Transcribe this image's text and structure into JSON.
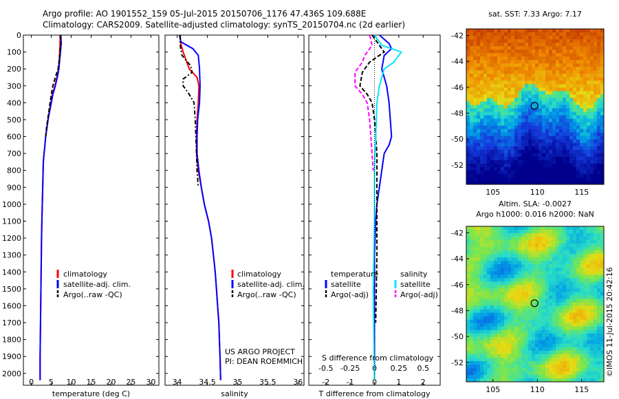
{
  "header": {
    "line1": "Argo profile: AO 1901552_159 05-Jul-2015 20150706_1176 47.436S 109.688E",
    "line2": "Climatology: CARS2009. Satellite-adjusted climatology: synTS_20150704.nc (2d earlier)"
  },
  "depth_ticks": [
    "0",
    "100",
    "200",
    "300",
    "400",
    "500",
    "600",
    "700",
    "800",
    "900",
    "1000",
    "1100",
    "1200",
    "1300",
    "1400",
    "1500",
    "1600",
    "1700",
    "1800",
    "1900",
    "2000"
  ],
  "colors": {
    "climatology": "#ff0000",
    "satellite": "#0000ff",
    "argo": "#000000",
    "sal_satellite": "#00e5ff",
    "sal_argo": "#ff00ff"
  },
  "chart_data": [
    {
      "type": "line",
      "xlabel": "temperature (deg C)",
      "xticks": [
        "0",
        "5",
        "10",
        "15",
        "20",
        "25",
        "30"
      ],
      "xlim": [
        -2,
        32
      ],
      "ylim": [
        0,
        2070
      ],
      "legend": {
        "entries": [
          "climatology",
          "satellite-adj. clim.",
          "Argo(..raw -QC)"
        ],
        "placement": "lower-center"
      },
      "series": [
        {
          "name": "climatology",
          "color": "#ff0000",
          "style": "solid",
          "points": [
            [
              7.2,
              0
            ],
            [
              7.2,
              50
            ],
            [
              7.1,
              100
            ],
            [
              7.0,
              150
            ],
            [
              6.8,
              200
            ],
            [
              6.4,
              250
            ],
            [
              5.9,
              300
            ],
            [
              5.3,
              350
            ],
            [
              4.9,
              400
            ],
            [
              4.5,
              450
            ],
            [
              4.2,
              500
            ],
            [
              3.9,
              550
            ],
            [
              3.6,
              600
            ],
            [
              3.4,
              650
            ],
            [
              3.2,
              700
            ],
            [
              3.0,
              750
            ],
            [
              2.95,
              800
            ],
            [
              2.85,
              900
            ],
            [
              2.75,
              1000
            ],
            [
              2.65,
              1100
            ],
            [
              2.55,
              1200
            ],
            [
              2.5,
              1300
            ],
            [
              2.45,
              1400
            ],
            [
              2.4,
              1500
            ],
            [
              2.35,
              1600
            ],
            [
              2.3,
              1700
            ],
            [
              2.25,
              1800
            ],
            [
              2.2,
              1900
            ],
            [
              2.2,
              2040
            ]
          ]
        },
        {
          "name": "satellite-adj. clim.",
          "color": "#0000ff",
          "style": "solid",
          "points": [
            [
              7.4,
              0
            ],
            [
              7.5,
              50
            ],
            [
              7.3,
              100
            ],
            [
              7.1,
              150
            ],
            [
              6.9,
              200
            ],
            [
              6.5,
              250
            ],
            [
              6.0,
              300
            ],
            [
              5.4,
              350
            ],
            [
              5.0,
              400
            ],
            [
              4.6,
              450
            ],
            [
              4.2,
              500
            ],
            [
              3.9,
              550
            ],
            [
              3.6,
              600
            ],
            [
              3.4,
              650
            ],
            [
              3.2,
              700
            ],
            [
              3.0,
              750
            ],
            [
              2.95,
              800
            ],
            [
              2.85,
              900
            ],
            [
              2.75,
              1000
            ],
            [
              2.65,
              1100
            ],
            [
              2.55,
              1200
            ],
            [
              2.5,
              1300
            ],
            [
              2.45,
              1400
            ],
            [
              2.4,
              1500
            ],
            [
              2.35,
              1600
            ],
            [
              2.3,
              1700
            ],
            [
              2.25,
              1800
            ],
            [
              2.2,
              1900
            ],
            [
              2.2,
              2040
            ]
          ]
        },
        {
          "name": "Argo(..raw -QC)",
          "color": "#000000",
          "style": "dash",
          "points": [
            [
              7.3,
              0
            ],
            [
              7.4,
              50
            ],
            [
              7.2,
              100
            ],
            [
              7.0,
              150
            ],
            [
              6.7,
              200
            ],
            [
              6.0,
              250
            ],
            [
              5.4,
              300
            ],
            [
              5.0,
              350
            ],
            [
              4.7,
              400
            ],
            [
              4.4,
              450
            ],
            [
              4.1,
              500
            ],
            [
              3.8,
              550
            ],
            [
              3.6,
              600
            ]
          ]
        }
      ]
    },
    {
      "type": "line",
      "xlabel": "salinity",
      "xticks": [
        "34",
        "34.5",
        "35",
        "35.5",
        "36"
      ],
      "xlim": [
        33.8,
        36.1
      ],
      "ylim": [
        0,
        2070
      ],
      "legend": {
        "entries": [
          "climatology",
          "satellite-adj. clim.",
          "Argo(..raw -QC)"
        ],
        "placement": "lower-center"
      },
      "annotation": [
        "US ARGO PROJECT",
        "PI: DEAN ROEMMICH"
      ],
      "series": [
        {
          "name": "climatology",
          "color": "#ff0000",
          "style": "solid",
          "points": [
            [
              34.05,
              0
            ],
            [
              34.06,
              50
            ],
            [
              34.1,
              100
            ],
            [
              34.2,
              200
            ],
            [
              34.33,
              250
            ],
            [
              34.36,
              300
            ],
            [
              34.35,
              400
            ],
            [
              34.33,
              500
            ],
            [
              34.32,
              600
            ],
            [
              34.32,
              700
            ],
            [
              34.35,
              800
            ],
            [
              34.4,
              900
            ],
            [
              34.45,
              1000
            ],
            [
              34.52,
              1100
            ],
            [
              34.57,
              1200
            ],
            [
              34.6,
              1300
            ],
            [
              34.63,
              1400
            ],
            [
              34.65,
              1500
            ],
            [
              34.67,
              1600
            ],
            [
              34.69,
              1700
            ],
            [
              34.7,
              1800
            ],
            [
              34.71,
              1900
            ],
            [
              34.72,
              2040
            ]
          ]
        },
        {
          "name": "satellite-adj. clim.",
          "color": "#0000ff",
          "style": "solid",
          "points": [
            [
              34.04,
              0
            ],
            [
              34.06,
              40
            ],
            [
              34.26,
              80
            ],
            [
              34.35,
              120
            ],
            [
              34.37,
              200
            ],
            [
              34.38,
              300
            ],
            [
              34.37,
              400
            ],
            [
              34.34,
              500
            ],
            [
              34.33,
              600
            ],
            [
              34.33,
              700
            ],
            [
              34.36,
              800
            ],
            [
              34.4,
              900
            ],
            [
              34.45,
              1000
            ],
            [
              34.52,
              1100
            ],
            [
              34.57,
              1200
            ],
            [
              34.6,
              1300
            ],
            [
              34.63,
              1400
            ],
            [
              34.65,
              1500
            ],
            [
              34.67,
              1600
            ],
            [
              34.69,
              1700
            ],
            [
              34.7,
              1800
            ],
            [
              34.71,
              1900
            ],
            [
              34.72,
              2040
            ]
          ]
        },
        {
          "name": "Argo(..raw -QC)",
          "color": "#000000",
          "style": "dashdot",
          "points": [
            [
              34.05,
              0
            ],
            [
              34.05,
              60
            ],
            [
              34.08,
              120
            ],
            [
              34.22,
              180
            ],
            [
              34.25,
              220
            ],
            [
              34.1,
              260
            ],
            [
              34.1,
              300
            ],
            [
              34.2,
              350
            ],
            [
              34.28,
              400
            ],
            [
              34.3,
              500
            ],
            [
              34.31,
              600
            ],
            [
              34.32,
              700
            ],
            [
              34.33,
              800
            ],
            [
              34.35,
              900
            ]
          ]
        }
      ]
    },
    {
      "type": "line",
      "xlabel": "T difference from climatology",
      "xticks": [
        "-2",
        "-1",
        "0",
        "1",
        "2"
      ],
      "xlim": [
        -2.7,
        2.7
      ],
      "x2label": "S difference from climatology",
      "x2ticks": [
        "-0.5",
        "-0.25",
        "0",
        "0.25",
        "0.5"
      ],
      "ylim": [
        0,
        2070
      ],
      "legend": {
        "entries": [
          "temperature",
          "satellite",
          "Argo(-adj)",
          "salinity",
          "satellite",
          "Argo(-adj)"
        ],
        "placement": "lower-center"
      },
      "series": [
        {
          "name": "temperature satellite",
          "color": "#0000ff",
          "style": "solid",
          "points": [
            [
              0.2,
              0
            ],
            [
              0.6,
              50
            ],
            [
              0.7,
              80
            ],
            [
              0.4,
              120
            ],
            [
              0.3,
              200
            ],
            [
              0.5,
              300
            ],
            [
              0.6,
              400
            ],
            [
              0.65,
              500
            ],
            [
              0.7,
              600
            ],
            [
              0.6,
              650
            ],
            [
              0.4,
              700
            ],
            [
              0.3,
              800
            ],
            [
              0.2,
              900
            ],
            [
              0.1,
              1000
            ],
            [
              0.05,
              1100
            ],
            [
              0.0,
              1300
            ],
            [
              0.0,
              2040
            ]
          ]
        },
        {
          "name": "temperature Argo(-adj)",
          "color": "#000000",
          "style": "dash",
          "points": [
            [
              -0.1,
              0
            ],
            [
              0.2,
              60
            ],
            [
              0.4,
              100
            ],
            [
              -0.2,
              160
            ],
            [
              -0.5,
              220
            ],
            [
              -0.6,
              300
            ],
            [
              -0.3,
              350
            ],
            [
              -0.1,
              400
            ],
            [
              0.0,
              500
            ],
            [
              0.1,
              700
            ],
            [
              0.1,
              900
            ],
            [
              0.1,
              1000
            ],
            [
              0.1,
              1300
            ],
            [
              0.05,
              1700
            ]
          ]
        },
        {
          "name": "salinity satellite",
          "color": "#00e5ff",
          "style": "solid",
          "points": [
            [
              0.0,
              0
            ],
            [
              0.3,
              60
            ],
            [
              1.1,
              100
            ],
            [
              0.8,
              160
            ],
            [
              0.4,
              200
            ],
            [
              0.2,
              300
            ],
            [
              0.1,
              400
            ],
            [
              0.05,
              600
            ],
            [
              0.0,
              800
            ],
            [
              0.0,
              1100
            ],
            [
              -0.05,
              1500
            ],
            [
              0.0,
              2040
            ]
          ]
        },
        {
          "name": "salinity Argo(-adj)",
          "color": "#ff00ff",
          "style": "dash",
          "points": [
            [
              -0.2,
              0
            ],
            [
              -0.1,
              60
            ],
            [
              -0.4,
              120
            ],
            [
              -0.5,
              160
            ],
            [
              -0.8,
              220
            ],
            [
              -0.8,
              300
            ],
            [
              -0.5,
              350
            ],
            [
              -0.3,
              400
            ],
            [
              -0.2,
              500
            ],
            [
              -0.15,
              600
            ],
            [
              -0.1,
              700
            ],
            [
              -0.05,
              800
            ]
          ]
        }
      ]
    },
    {
      "type": "heatmap",
      "title": "sat. SST: 7.33 Argo: 7.17",
      "xticks": [
        "105",
        "110",
        "115"
      ],
      "yticks": [
        "-42",
        "-44",
        "-46",
        "-48",
        "-50",
        "-52"
      ],
      "xlim": [
        102.0,
        117.5
      ],
      "ylim": [
        -53.5,
        -41.5
      ],
      "marker": {
        "lon": 109.688,
        "lat": -47.436
      }
    },
    {
      "type": "heatmap",
      "title": "Altim. SLA: -0.0027",
      "subtitle": "Argo h1000: 0.016 h2000: NaN",
      "xticks": [
        "105",
        "110",
        "115"
      ],
      "yticks": [
        "-42",
        "-44",
        "-46",
        "-48",
        "-50",
        "-52"
      ],
      "xlim": [
        102.0,
        117.5
      ],
      "ylim": [
        -53.5,
        -41.5
      ],
      "marker": {
        "lon": 109.688,
        "lat": -47.436
      }
    }
  ],
  "side_text": "©IMOS 11-Jul-2015 20:42:16"
}
